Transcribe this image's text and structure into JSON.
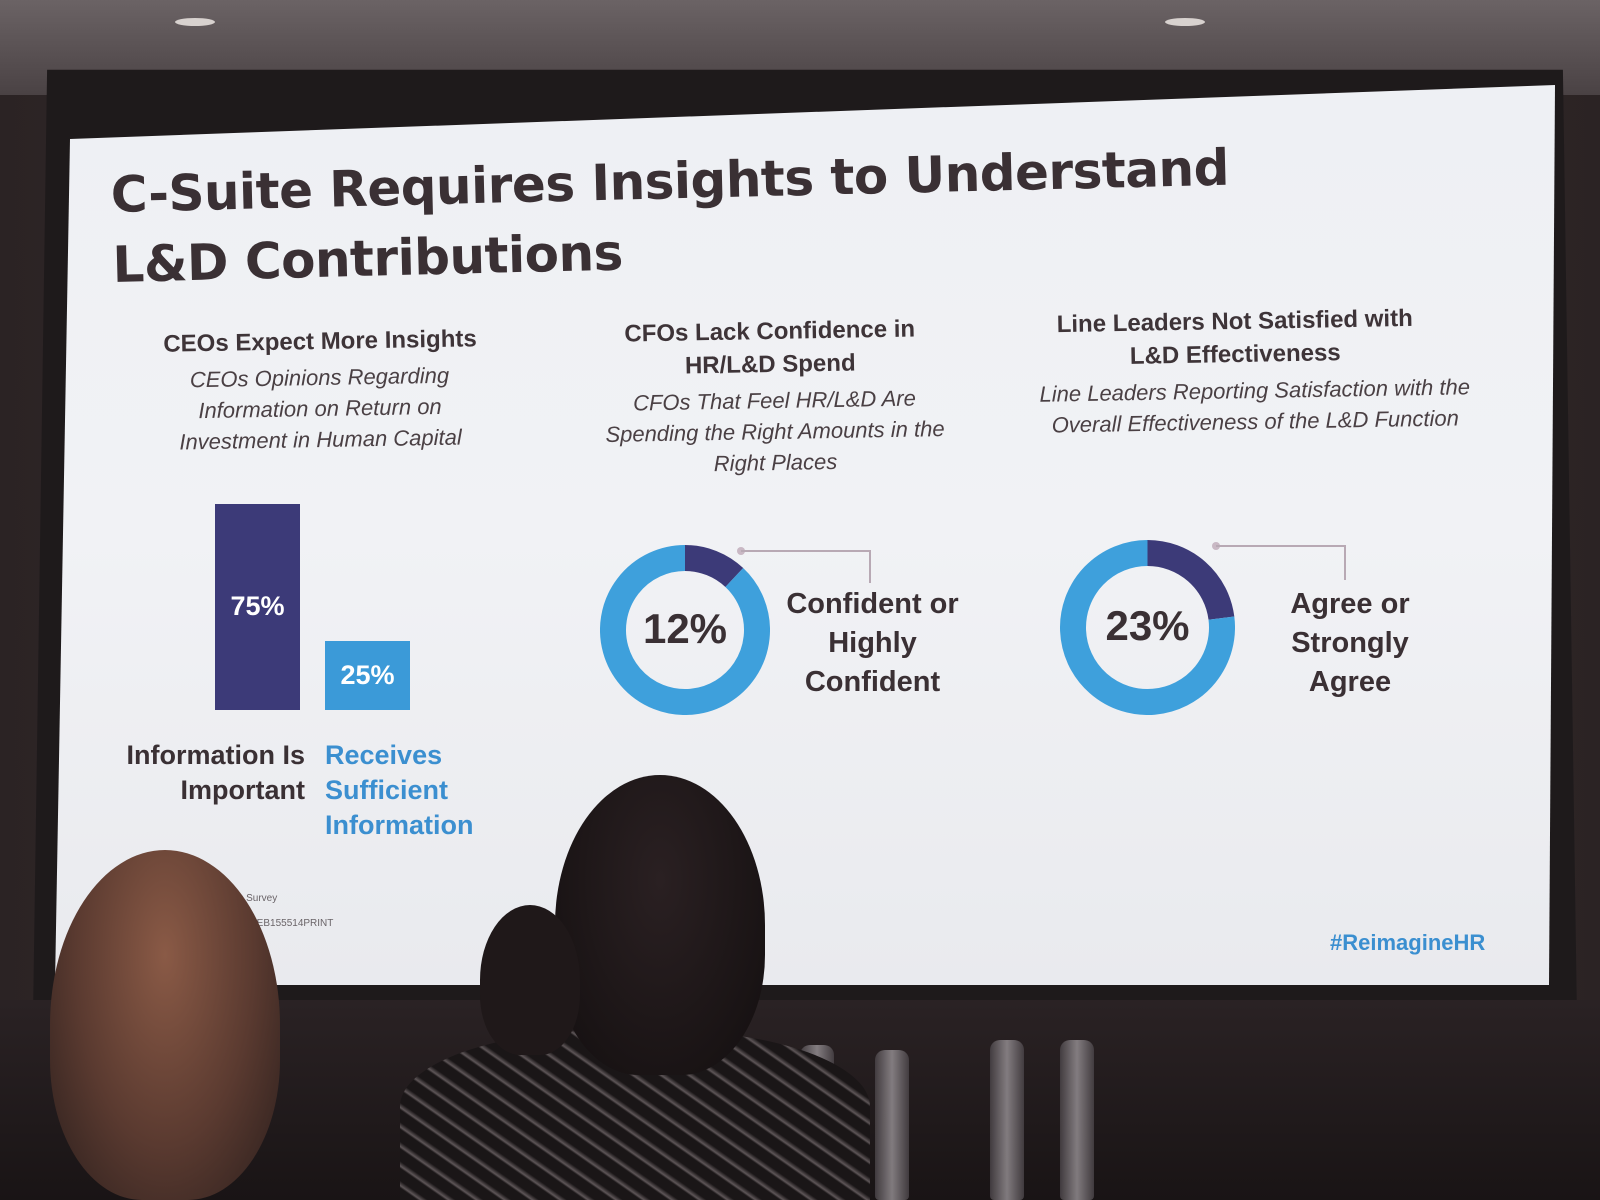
{
  "slide": {
    "title": "C-Suite Requires Insights to Understand L&D Contributions",
    "hashtag": "#ReimagineHR",
    "footnote_1": "...s Survey",
    "footnote_2": "...d. CEB155514PRINT"
  },
  "columns": [
    {
      "heading": "CEOs Expect More Insights",
      "subheading": "CEOs Opinions Regarding Information on Return on Investment in Human Capital"
    },
    {
      "heading": "CFOs Lack Confidence in HR/L&D Spend",
      "subheading": "CFOs That Feel HR/L&D Are Spending the Right Amounts in the Right Places"
    },
    {
      "heading": "Line Leaders Not Satisfied with L&D Effectiveness",
      "subheading": "Line Leaders Reporting Satisfaction with the Overall Effectiveness of the L&D Function"
    }
  ],
  "chart_data": [
    {
      "type": "bar",
      "categories": [
        "Information Is Important",
        "Receives Sufficient Information"
      ],
      "values": [
        75,
        25
      ],
      "value_labels": [
        "75%",
        "25%"
      ],
      "colors": [
        "#3c3a78",
        "#3b9ad8"
      ]
    },
    {
      "type": "pie",
      "values": [
        12,
        88
      ],
      "center_label": "12%",
      "legend_label": "Confident or Highly Confident",
      "colors": [
        "#3c3a78",
        "#3ea0dc"
      ]
    },
    {
      "type": "pie",
      "values": [
        23,
        77
      ],
      "center_label": "23%",
      "legend_label": "Agree or Strongly Agree",
      "colors": [
        "#3c3a78",
        "#3ea0dc"
      ]
    }
  ],
  "colors": {
    "navy": "#3c3a78",
    "blue": "#3b9ad8",
    "title_text": "#3a3034"
  }
}
